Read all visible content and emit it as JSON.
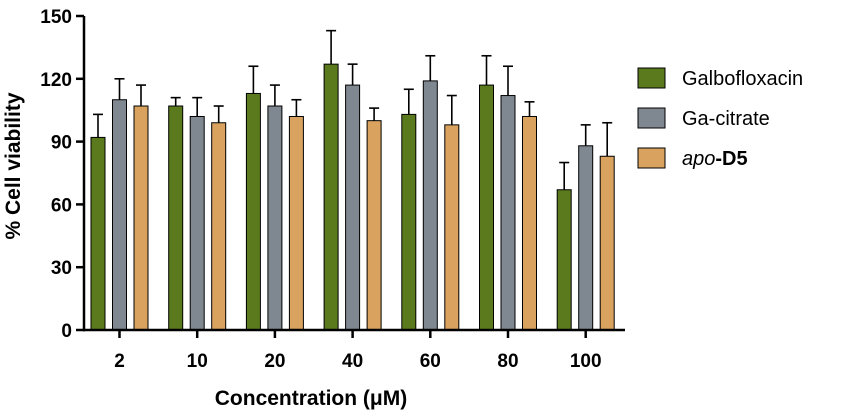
{
  "chart_data": {
    "type": "bar",
    "xlabel": "Concentration (μM)",
    "ylabel": "% Cell viability",
    "ylim": [
      0,
      150
    ],
    "yticks": [
      0,
      30,
      60,
      90,
      120,
      150
    ],
    "categories": [
      "2",
      "10",
      "20",
      "40",
      "60",
      "80",
      "100"
    ],
    "grid": false,
    "legend_position": "right",
    "series": [
      {
        "name": "Galbofloxacin",
        "color": "#5b7a1e",
        "values": [
          92,
          107,
          113,
          127,
          103,
          117,
          67
        ],
        "errors": [
          11,
          4,
          13,
          16,
          12,
          14,
          13
        ]
      },
      {
        "name": "Ga-citrate",
        "color": "#7f8890",
        "values": [
          110,
          102,
          107,
          117,
          119,
          112,
          88
        ],
        "errors": [
          10,
          9,
          10,
          10,
          12,
          14,
          10
        ]
      },
      {
        "name": "apo-D5",
        "name_parts": {
          "italic": "apo",
          "bold": "-D5"
        },
        "color": "#d9a25f",
        "values": [
          107,
          99,
          102,
          100,
          98,
          102,
          83
        ],
        "errors": [
          10,
          8,
          8,
          6,
          14,
          7,
          16
        ]
      }
    ]
  }
}
